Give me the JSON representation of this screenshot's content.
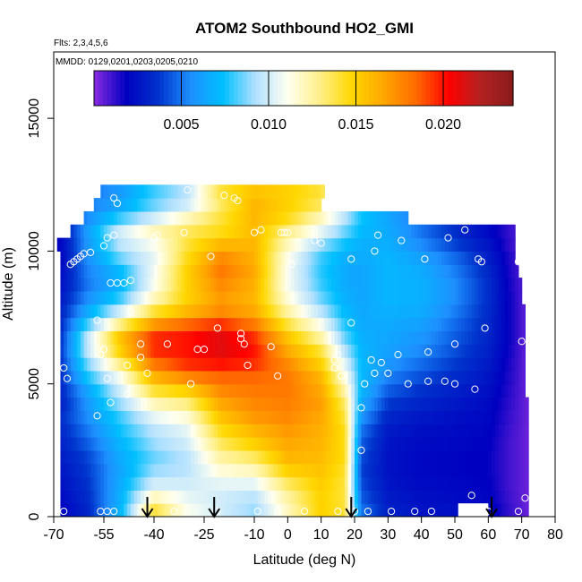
{
  "chart_data": {
    "type": "heatmap",
    "title": "ATOM2 Southbound HO2_GMI",
    "flights_note": "Flts: 2,3,4,5,6",
    "dates_note": "MMDD: 0129,0201,0203,0205,0210",
    "xlabel": "Latitude (deg N)",
    "ylabel": "Altitude (m)",
    "xlim": [
      -70,
      80
    ],
    "ylim": [
      0,
      17500
    ],
    "x_ticks": [
      -70,
      -55,
      -40,
      -25,
      -10,
      0,
      10,
      20,
      30,
      40,
      50,
      60,
      70,
      80
    ],
    "y_ticks": [
      0,
      5000,
      10000,
      15000
    ],
    "colorbar": {
      "min": 0.0,
      "max": 0.024,
      "ticks": [
        0.005,
        0.01,
        0.015,
        0.02
      ],
      "tick_labels": [
        "0.005",
        "0.010",
        "0.015",
        "0.020"
      ],
      "colors": [
        "#8a2be2",
        "#0000c0",
        "#0033cc",
        "#1e90ff",
        "#00bfff",
        "#b0e0ff",
        "#fffff0",
        "#fff08a",
        "#ffd700",
        "#ffa500",
        "#ff6a00",
        "#ff0000",
        "#b22222",
        "#8b1a1a"
      ]
    },
    "altitude_levels_m": [
      250,
      750,
      1250,
      1750,
      2250,
      2750,
      3250,
      3750,
      4250,
      4750,
      5250,
      5750,
      6250,
      6750,
      7250,
      7750,
      8250,
      8750,
      9250,
      9750,
      10250,
      10750,
      11250,
      11750,
      12250
    ],
    "latitude_extent": [
      [
        -68,
        72
      ],
      [
        -68,
        72
      ],
      [
        -68,
        72
      ],
      [
        -68,
        72
      ],
      [
        -68,
        72
      ],
      [
        -68,
        72
      ],
      [
        -68,
        72
      ],
      [
        -68,
        72
      ],
      [
        -68,
        72
      ],
      [
        -68,
        71
      ],
      [
        -68,
        71
      ],
      [
        -68,
        71
      ],
      [
        -68,
        71
      ],
      [
        -68,
        71
      ],
      [
        -68,
        71
      ],
      [
        -68,
        71
      ],
      [
        -68,
        70
      ],
      [
        -68,
        70
      ],
      [
        -68,
        69
      ],
      [
        -68,
        68
      ],
      [
        -69,
        68
      ],
      [
        -65,
        68
      ],
      [
        -61,
        36
      ],
      [
        -58,
        10
      ],
      [
        -56,
        11
      ]
    ],
    "profiles": [
      {
        "lat": -68,
        "v": [
          0.002,
          0.0022,
          0.0024,
          0.0026,
          0.0028,
          0.003,
          0.0032,
          0.0034,
          0.003,
          0.0032,
          0.0034,
          0.0035,
          0.0036,
          0.0035,
          0.0033,
          0.003,
          0.0027,
          0.0024,
          0.0022,
          0.002,
          0.002,
          0.0021,
          0.0023,
          0.0025,
          0.0025
        ]
      },
      {
        "lat": -60,
        "v": [
          0.0032,
          0.0034,
          0.0036,
          0.0038,
          0.004,
          0.0045,
          0.005,
          0.0055,
          0.0058,
          0.0063,
          0.0075,
          0.0085,
          0.0095,
          0.0095,
          0.008,
          0.0065,
          0.0055,
          0.005,
          0.0052,
          0.0055,
          0.0058,
          0.006,
          0.0055,
          0.005,
          0.0048
        ]
      },
      {
        "lat": -50,
        "v": [
          0.007,
          0.0068,
          0.0066,
          0.0064,
          0.0066,
          0.007,
          0.0075,
          0.008,
          0.009,
          0.01,
          0.011,
          0.013,
          0.015,
          0.0155,
          0.013,
          0.01,
          0.008,
          0.007,
          0.0072,
          0.0085,
          0.0095,
          0.01,
          0.008,
          0.0065,
          0.006
        ]
      },
      {
        "lat": -40,
        "v": [
          0.014,
          0.012,
          0.01,
          0.009,
          0.0085,
          0.009,
          0.0095,
          0.0105,
          0.012,
          0.014,
          0.016,
          0.018,
          0.0195,
          0.0195,
          0.017,
          0.014,
          0.012,
          0.011,
          0.0108,
          0.0105,
          0.011,
          0.012,
          0.01,
          0.0085,
          0.008
        ]
      },
      {
        "lat": -30,
        "v": [
          0.011,
          0.0105,
          0.01,
          0.0095,
          0.0095,
          0.01,
          0.0105,
          0.0115,
          0.013,
          0.015,
          0.0175,
          0.0195,
          0.02,
          0.02,
          0.0185,
          0.016,
          0.015,
          0.015,
          0.015,
          0.0145,
          0.014,
          0.0135,
          0.012,
          0.01,
          0.0095
        ]
      },
      {
        "lat": -20,
        "v": [
          0.01,
          0.01,
          0.0105,
          0.0115,
          0.0125,
          0.0135,
          0.0145,
          0.0155,
          0.0165,
          0.0175,
          0.0185,
          0.02,
          0.021,
          0.021,
          0.0195,
          0.0175,
          0.017,
          0.0175,
          0.018,
          0.0175,
          0.016,
          0.0145,
          0.014,
          0.0135,
          0.014
        ]
      },
      {
        "lat": -10,
        "v": [
          0.009,
          0.0095,
          0.0105,
          0.012,
          0.0135,
          0.015,
          0.016,
          0.017,
          0.0175,
          0.018,
          0.0185,
          0.0195,
          0.02,
          0.0195,
          0.018,
          0.0165,
          0.016,
          0.0162,
          0.0165,
          0.0162,
          0.016,
          0.0158,
          0.016,
          0.016,
          0.0155
        ]
      },
      {
        "lat": 0,
        "v": [
          0.012,
          0.0125,
          0.0135,
          0.015,
          0.016,
          0.0165,
          0.017,
          0.0175,
          0.0178,
          0.018,
          0.018,
          0.0175,
          0.0165,
          0.0155,
          0.014,
          0.0125,
          0.0115,
          0.011,
          0.011,
          0.0112,
          0.012,
          0.013,
          0.0145,
          0.015,
          0.015
        ]
      },
      {
        "lat": 10,
        "v": [
          0.015,
          0.015,
          0.0152,
          0.0155,
          0.0158,
          0.016,
          0.0162,
          0.0165,
          0.0168,
          0.0165,
          0.016,
          0.015,
          0.014,
          0.0125,
          0.011,
          0.0095,
          0.0085,
          0.008,
          0.0078,
          0.008,
          0.009,
          0.0105,
          0.012,
          0.0135,
          0.014
        ]
      },
      {
        "lat": 17,
        "v": [
          0.014,
          0.014,
          0.014,
          0.0142,
          0.0145,
          0.0145,
          0.0145,
          0.014,
          0.0135,
          0.0125,
          0.0115,
          0.0105,
          0.0095,
          0.0085,
          0.0078,
          0.0072,
          0.0068,
          0.0066,
          0.0066,
          0.0068,
          0.0075,
          0.0085,
          0.0095,
          0.01,
          0.01
        ]
      },
      {
        "lat": 22,
        "v": [
          0.005,
          0.0045,
          0.0042,
          0.004,
          0.0042,
          0.0045,
          0.005,
          0.0058,
          0.0065,
          0.007,
          0.0072,
          0.0072,
          0.007,
          0.0068,
          0.0066,
          0.0065,
          0.0064,
          0.0064,
          0.0064,
          0.0066,
          0.0068,
          0.0072,
          0.0075,
          0.0078,
          0.008
        ]
      },
      {
        "lat": 30,
        "v": [
          0.003,
          0.0028,
          0.0026,
          0.0025,
          0.0025,
          0.0026,
          0.0028,
          0.0032,
          0.0038,
          0.0045,
          0.0052,
          0.0058,
          0.0062,
          0.0064,
          0.0066,
          0.0068,
          0.007,
          0.007,
          0.007,
          0.007,
          0.0068,
          0.0066,
          0.0064,
          0.0064,
          0.0064
        ]
      },
      {
        "lat": 40,
        "v": [
          0.0025,
          0.0024,
          0.0022,
          0.0021,
          0.0021,
          0.0022,
          0.0024,
          0.0027,
          0.0031,
          0.0036,
          0.0042,
          0.0048,
          0.0054,
          0.0058,
          0.0062,
          0.0066,
          0.0068,
          0.0068,
          0.0066,
          0.0062,
          0.0055,
          0.005,
          0.0048,
          0.0048,
          0.0048
        ]
      },
      {
        "lat": 50,
        "v": [
          0.0024,
          0.0022,
          0.0021,
          0.002,
          0.002,
          0.0021,
          0.0022,
          0.0024,
          0.0027,
          0.003,
          0.0034,
          0.0038,
          0.0042,
          0.0045,
          0.0048,
          0.0052,
          0.0055,
          0.0055,
          0.0052,
          0.0048,
          0.004,
          0.0035,
          0.0033,
          0.0033,
          0.0033
        ]
      },
      {
        "lat": 60,
        "v": [
          0.0022,
          0.002,
          0.0019,
          0.0018,
          0.0018,
          0.0019,
          0.002,
          0.0021,
          0.0022,
          0.0024,
          0.0026,
          0.0028,
          0.003,
          0.0032,
          0.0033,
          0.0034,
          0.0035,
          0.0035,
          0.0033,
          0.003,
          0.0026,
          0.0022,
          0.002,
          0.002,
          0.002
        ]
      },
      {
        "lat": 66,
        "v": [
          0.0012,
          0.0011,
          0.001,
          0.001,
          0.001,
          0.001,
          0.0011,
          0.0012,
          0.0013,
          0.0014,
          0.0015,
          0.0016,
          0.0017,
          0.0018,
          0.0018,
          0.0018,
          0.0018,
          0.0017,
          0.0016,
          0.0015,
          0.0013,
          0.0012,
          0.0012,
          0.0012,
          0.0012
        ]
      },
      {
        "lat": 72,
        "v": [
          0.0004,
          0.0004,
          0.0004,
          0.0004,
          0.0004,
          0.0004,
          0.0004,
          0.0004,
          0.0004,
          0.0004,
          0.0004,
          0.0004,
          0.0004,
          0.0004,
          0.0004,
          0.0004,
          0.0004,
          0.0004,
          0.0004,
          0.0004,
          0.0004,
          0.0004,
          0.0004,
          0.0004,
          0.0004
        ]
      }
    ],
    "blank_regions": [
      {
        "lat": [
          51,
          60
        ],
        "alt": [
          0,
          500
        ]
      }
    ],
    "sample_points": [
      [
        -67,
        200
      ],
      [
        -67,
        5600
      ],
      [
        -66,
        5200
      ],
      [
        -65,
        9500
      ],
      [
        -64,
        9600
      ],
      [
        -63,
        9700
      ],
      [
        -62,
        9800
      ],
      [
        -61,
        9900
      ],
      [
        -59,
        9950
      ],
      [
        -57,
        7400
      ],
      [
        -56,
        200
      ],
      [
        -56,
        6100
      ],
      [
        -55,
        6300
      ],
      [
        -55,
        10200
      ],
      [
        -54,
        10500
      ],
      [
        -54,
        5200
      ],
      [
        -53,
        4300
      ],
      [
        -52,
        12000
      ],
      [
        -51,
        11800
      ],
      [
        -52,
        10600
      ],
      [
        -53,
        8800
      ],
      [
        -51,
        8800
      ],
      [
        -49,
        8800
      ],
      [
        -47,
        8900
      ],
      [
        -47,
        7700
      ],
      [
        -48,
        5700
      ],
      [
        -48,
        4600
      ],
      [
        -57,
        3800
      ],
      [
        -54,
        200
      ],
      [
        -52,
        200
      ],
      [
        -44,
        6500
      ],
      [
        -44,
        6000
      ],
      [
        -42,
        5400
      ],
      [
        -40,
        10500
      ],
      [
        -39,
        10600
      ],
      [
        -36,
        6500
      ],
      [
        -34,
        200
      ],
      [
        -31,
        10700
      ],
      [
        -30,
        12300
      ],
      [
        -29,
        5000
      ],
      [
        -27,
        6300
      ],
      [
        -25,
        6300
      ],
      [
        -23,
        9800
      ],
      [
        -21,
        7100
      ],
      [
        -21,
        200
      ],
      [
        -19,
        12100
      ],
      [
        -16,
        12000
      ],
      [
        -15,
        11900
      ],
      [
        -14,
        6900
      ],
      [
        -14,
        6700
      ],
      [
        -13,
        6500
      ],
      [
        -12,
        5700
      ],
      [
        -10,
        10700
      ],
      [
        -9,
        200
      ],
      [
        -8,
        10800
      ],
      [
        -5,
        6400
      ],
      [
        -3,
        5300
      ],
      [
        -2,
        10700
      ],
      [
        -1,
        10700
      ],
      [
        0,
        10700
      ],
      [
        -3,
        200
      ],
      [
        1,
        9500
      ],
      [
        5,
        200
      ],
      [
        8,
        10400
      ],
      [
        10,
        10300
      ],
      [
        14,
        5900
      ],
      [
        14,
        5600
      ],
      [
        15,
        6100
      ],
      [
        15,
        200
      ],
      [
        16,
        5300
      ],
      [
        19,
        7300
      ],
      [
        19,
        9700
      ],
      [
        20,
        200
      ],
      [
        22,
        4100
      ],
      [
        22,
        2500
      ],
      [
        23,
        5000
      ],
      [
        25,
        5900
      ],
      [
        26,
        5400
      ],
      [
        28,
        5800
      ],
      [
        30,
        5400
      ],
      [
        24,
        200
      ],
      [
        26,
        10000
      ],
      [
        27,
        10600
      ],
      [
        31,
        200
      ],
      [
        33,
        6100
      ],
      [
        34,
        10400
      ],
      [
        36,
        5000
      ],
      [
        38,
        200
      ],
      [
        41,
        9700
      ],
      [
        42,
        5100
      ],
      [
        42,
        6200
      ],
      [
        43,
        200
      ],
      [
        47,
        5100
      ],
      [
        48,
        10500
      ],
      [
        50,
        6500
      ],
      [
        50,
        5000
      ],
      [
        53,
        10800
      ],
      [
        55,
        800
      ],
      [
        56,
        4800
      ],
      [
        57,
        9700
      ],
      [
        58,
        9600
      ],
      [
        59,
        7100
      ],
      [
        60,
        200
      ],
      [
        65,
        11300
      ],
      [
        68,
        11300
      ],
      [
        69,
        9600
      ],
      [
        70,
        6600
      ],
      [
        71,
        700
      ],
      [
        69,
        200
      ]
    ],
    "sample_point_color": "#ffffff",
    "flight_markers_lat": [
      -42,
      -22,
      19,
      61
    ],
    "grid": false,
    "legend": "none"
  }
}
